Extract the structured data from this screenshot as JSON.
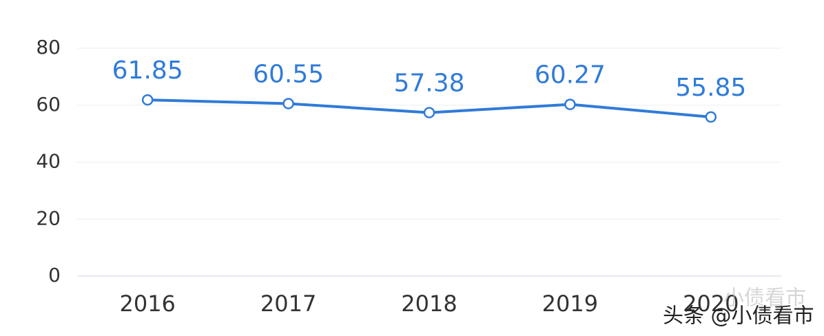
{
  "chart_data": {
    "type": "line",
    "categories": [
      "2016",
      "2017",
      "2018",
      "2019",
      "2020"
    ],
    "values": [
      61.85,
      60.55,
      57.38,
      60.27,
      55.85
    ],
    "color": "#2f7bd8",
    "ylim": [
      0,
      80
    ],
    "yticks": [
      0,
      20,
      40,
      60,
      80
    ],
    "grid": true,
    "watermark": "头条 @小债看市",
    "watermark_faint": "小债看市"
  }
}
